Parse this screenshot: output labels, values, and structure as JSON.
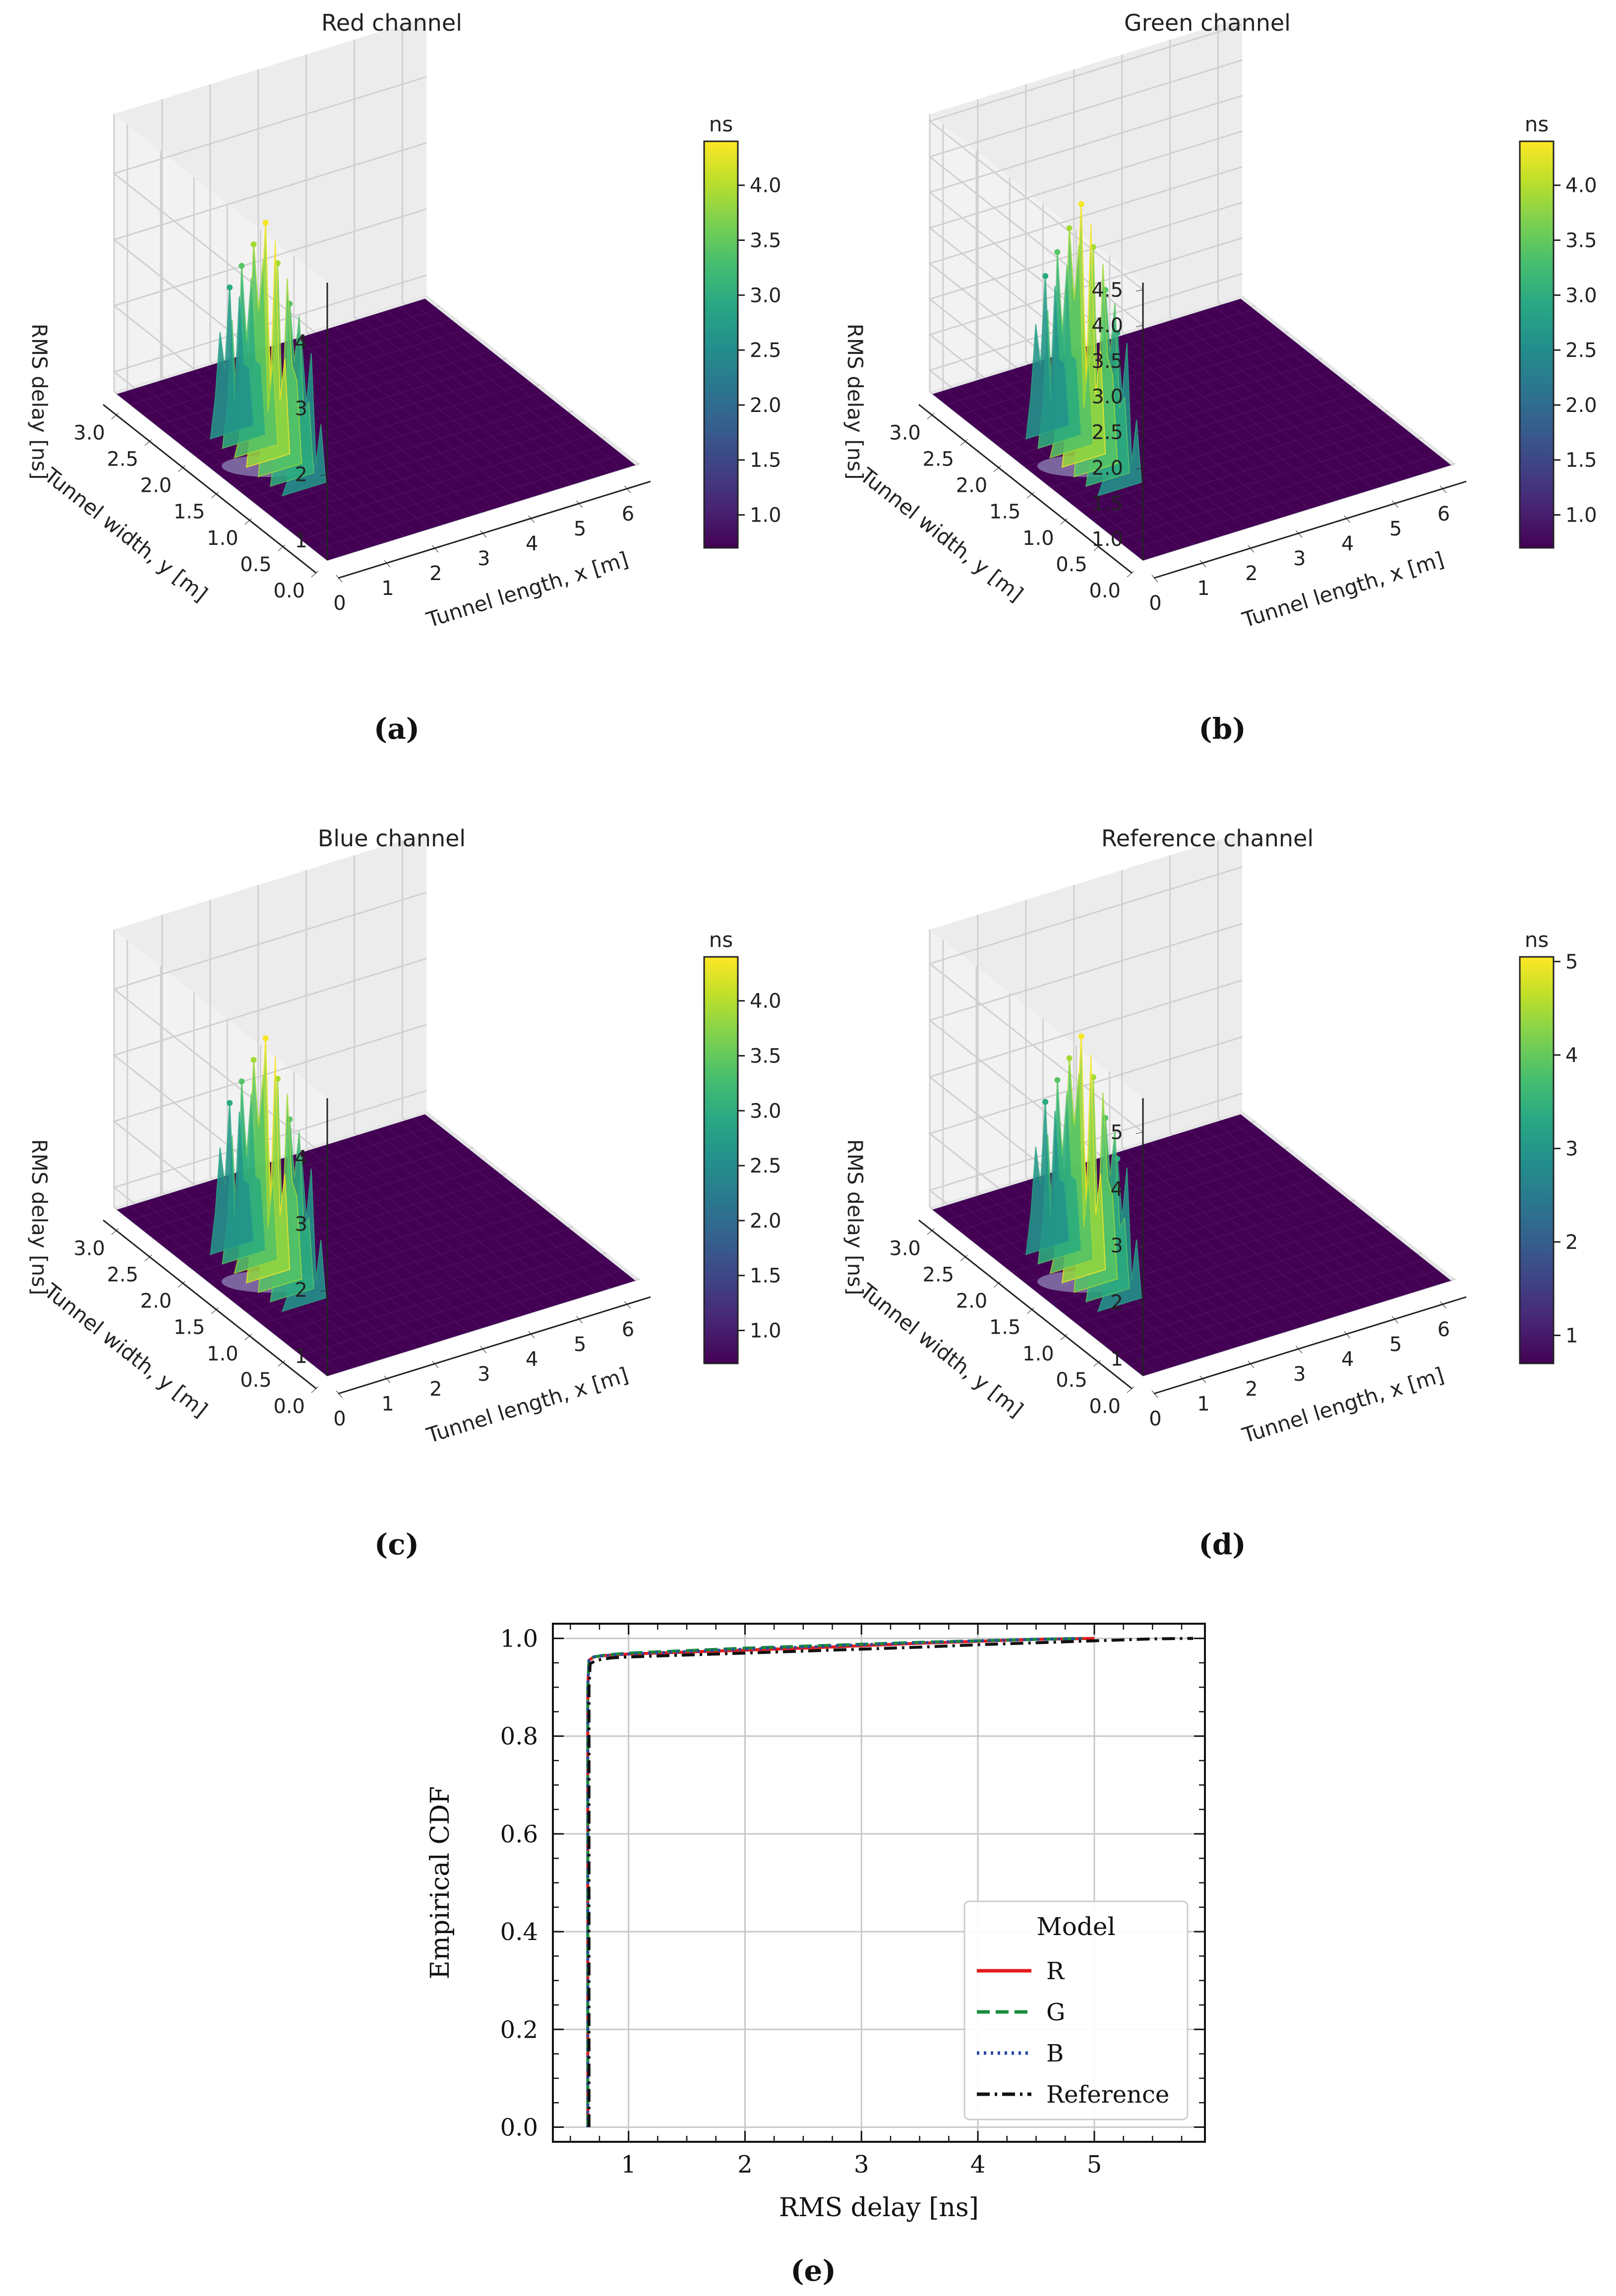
{
  "colorbar_unit": "ns",
  "panels": [
    {
      "label": "(a)",
      "title": "Red channel",
      "zlabel": "RMS delay [ns]",
      "xlabel": "Tunnel length, x [m]",
      "ylabel": "Tunnel width, y [m]",
      "xticks": [
        "0",
        "1",
        "2",
        "3",
        "4",
        "5",
        "6"
      ],
      "yticks": [
        "0.0",
        "0.5",
        "1.0",
        "1.5",
        "2.0",
        "2.5",
        "3.0"
      ],
      "zticks": [
        "1",
        "2",
        "3",
        "4"
      ],
      "colorbar_ticks": [
        "1.0",
        "1.5",
        "2.0",
        "2.5",
        "3.0",
        "3.5",
        "4.0"
      ],
      "colorbar_range": [
        0.7,
        4.4
      ]
    },
    {
      "label": "(b)",
      "title": "Green channel",
      "zlabel": "RMS delay [ns]",
      "xlabel": "Tunnel length, x [m]",
      "ylabel": "Tunnel width, y [m]",
      "xticks": [
        "0",
        "1",
        "2",
        "3",
        "4",
        "5",
        "6"
      ],
      "yticks": [
        "0.0",
        "0.5",
        "1.0",
        "1.5",
        "2.0",
        "2.5",
        "3.0"
      ],
      "zticks": [
        "1.0",
        "1.5",
        "2.0",
        "2.5",
        "3.0",
        "3.5",
        "4.0",
        "4.5"
      ],
      "colorbar_ticks": [
        "1.0",
        "1.5",
        "2.0",
        "2.5",
        "3.0",
        "3.5",
        "4.0"
      ],
      "colorbar_range": [
        0.7,
        4.4
      ]
    },
    {
      "label": "(c)",
      "title": "Blue channel",
      "zlabel": "RMS delay [ns]",
      "xlabel": "Tunnel length, x [m]",
      "ylabel": "Tunnel width, y [m]",
      "xticks": [
        "0",
        "1",
        "2",
        "3",
        "4",
        "5",
        "6"
      ],
      "yticks": [
        "0.0",
        "0.5",
        "1.0",
        "1.5",
        "2.0",
        "2.5",
        "3.0"
      ],
      "zticks": [
        "1",
        "2",
        "3",
        "4"
      ],
      "colorbar_ticks": [
        "1.0",
        "1.5",
        "2.0",
        "2.5",
        "3.0",
        "3.5",
        "4.0"
      ],
      "colorbar_range": [
        0.7,
        4.4
      ]
    },
    {
      "label": "(d)",
      "title": "Reference channel",
      "zlabel": "RMS delay [ns]",
      "xlabel": "Tunnel length, x [m]",
      "ylabel": "Tunnel width, y [m]",
      "xticks": [
        "0",
        "1",
        "2",
        "3",
        "4",
        "5",
        "6"
      ],
      "yticks": [
        "0.0",
        "0.5",
        "1.0",
        "1.5",
        "2.0",
        "2.5",
        "3.0"
      ],
      "zticks": [
        "1",
        "2",
        "3",
        "4",
        "5"
      ],
      "colorbar_ticks": [
        "1",
        "2",
        "3",
        "4",
        "5"
      ],
      "colorbar_range": [
        0.7,
        5.05
      ]
    }
  ],
  "cdf_label": "(e)",
  "chart_data": [
    {
      "type": "surface",
      "title": "Red channel",
      "xlabel": "Tunnel length, x [m]",
      "ylabel": "Tunnel width, y [m]",
      "zlabel": "RMS delay [ns]",
      "xlim": [
        0,
        6.5
      ],
      "ylim": [
        0,
        3.2
      ],
      "zlim": [
        0.7,
        4.9
      ],
      "floor_value": 0.7,
      "peak_center": [
        1.0,
        1.6
      ],
      "peak_max": 4.4
    },
    {
      "type": "surface",
      "title": "Green channel",
      "xlabel": "Tunnel length, x [m]",
      "ylabel": "Tunnel width, y [m]",
      "zlabel": "RMS delay [ns]",
      "xlim": [
        0,
        6.5
      ],
      "ylim": [
        0,
        3.2
      ],
      "zlim": [
        0.7,
        4.6
      ],
      "floor_value": 0.7,
      "peak_center": [
        1.0,
        1.6
      ],
      "peak_max": 4.4
    },
    {
      "type": "surface",
      "title": "Blue channel",
      "xlabel": "Tunnel length, x [m]",
      "ylabel": "Tunnel width, y [m]",
      "zlabel": "RMS delay [ns]",
      "xlim": [
        0,
        6.5
      ],
      "ylim": [
        0,
        3.2
      ],
      "zlim": [
        0.7,
        4.9
      ],
      "floor_value": 0.7,
      "peak_center": [
        1.0,
        1.6
      ],
      "peak_max": 4.4
    },
    {
      "type": "surface",
      "title": "Reference channel",
      "xlabel": "Tunnel length, x [m]",
      "ylabel": "Tunnel width, y [m]",
      "zlabel": "RMS delay [ns]",
      "xlim": [
        0,
        6.5
      ],
      "ylim": [
        0,
        3.2
      ],
      "zlim": [
        0.7,
        5.6
      ],
      "floor_value": 0.7,
      "peak_center": [
        1.0,
        1.6
      ],
      "peak_max": 5.05
    },
    {
      "type": "line",
      "title": "",
      "xlabel": "RMS delay [ns]",
      "ylabel": "Empirical CDF",
      "xlim": [
        0.35,
        5.95
      ],
      "ylim": [
        -0.03,
        1.03
      ],
      "xticks": [
        "1",
        "2",
        "3",
        "4",
        "5"
      ],
      "yticks": [
        "0.0",
        "0.2",
        "0.4",
        "0.6",
        "0.8",
        "1.0"
      ],
      "legend_title": "Model",
      "legend_position": "bottom-right",
      "grid": true,
      "series": [
        {
          "name": "R",
          "color": "#e41a1c",
          "dash": "solid",
          "x": [
            0.65,
            0.65,
            0.66,
            0.7,
            0.8,
            1.0,
            1.5,
            2.0,
            2.5,
            3.0,
            3.5,
            4.0,
            4.5,
            5.0
          ],
          "y": [
            0.0,
            0.9,
            0.955,
            0.962,
            0.965,
            0.968,
            0.972,
            0.976,
            0.98,
            0.985,
            0.99,
            0.994,
            0.998,
            1.0
          ]
        },
        {
          "name": "G",
          "color": "#1a8c3c",
          "dash": "dashed",
          "x": [
            0.65,
            0.65,
            0.66,
            0.7,
            0.8,
            1.0,
            1.5,
            2.0,
            2.5,
            3.0,
            3.5,
            4.0,
            4.5,
            4.9
          ],
          "y": [
            0.0,
            0.9,
            0.955,
            0.962,
            0.966,
            0.97,
            0.975,
            0.98,
            0.984,
            0.988,
            0.992,
            0.995,
            0.998,
            1.0
          ]
        },
        {
          "name": "B",
          "color": "#2848a8",
          "dash": "dotted",
          "x": [
            0.65,
            0.65,
            0.66,
            0.7,
            0.8,
            1.0,
            1.5,
            2.0,
            2.5,
            3.0,
            3.5,
            4.0,
            4.5,
            4.9
          ],
          "y": [
            0.0,
            0.9,
            0.955,
            0.962,
            0.965,
            0.968,
            0.973,
            0.978,
            0.982,
            0.987,
            0.991,
            0.995,
            0.998,
            1.0
          ]
        },
        {
          "name": "Reference",
          "color": "#111111",
          "dash": "dashdot",
          "x": [
            0.66,
            0.66,
            0.67,
            0.72,
            0.85,
            1.0,
            1.5,
            2.0,
            2.5,
            3.0,
            3.5,
            4.0,
            4.5,
            5.0,
            5.5,
            5.85
          ],
          "y": [
            0.0,
            0.9,
            0.948,
            0.955,
            0.96,
            0.962,
            0.966,
            0.97,
            0.974,
            0.978,
            0.982,
            0.987,
            0.991,
            0.995,
            0.999,
            1.0
          ]
        }
      ]
    }
  ]
}
